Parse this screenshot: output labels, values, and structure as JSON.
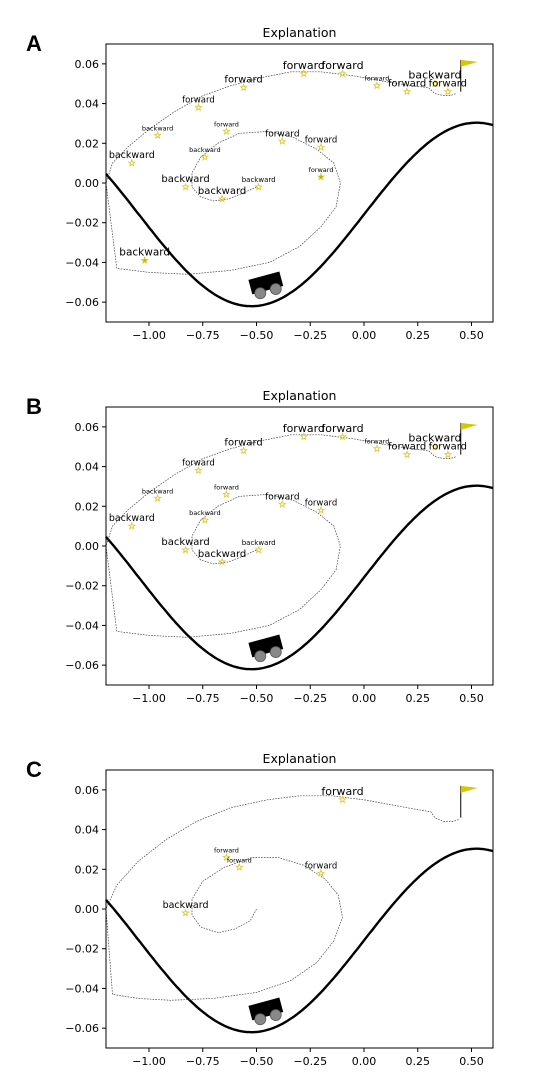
{
  "figure": {
    "panels": [
      {
        "letter": "A",
        "chart_data": {
          "type": "line",
          "title": "Explanation",
          "xlabel": "",
          "ylabel": "",
          "xlim": [
            -1.2,
            0.6
          ],
          "ylim": [
            -0.07,
            0.07
          ],
          "xticks": [
            -1.0,
            -0.75,
            -0.5,
            -0.25,
            0.0,
            0.25,
            0.5
          ],
          "xtick_labels": [
            "−1.00",
            "−0.75",
            "−0.50",
            "−0.25",
            "0.00",
            "0.25",
            "0.50"
          ],
          "yticks": [
            -0.06,
            -0.04,
            -0.02,
            0.0,
            0.02,
            0.04,
            0.06
          ],
          "ytick_labels": [
            "−0.06",
            "−0.04",
            "−0.02",
            "0.00",
            "0.02",
            "0.04",
            "0.06"
          ],
          "grid": false,
          "trajectory": [
            [
              -0.5,
              -0.002
            ],
            [
              -0.56,
              -0.005
            ],
            [
              -0.63,
              -0.008
            ],
            [
              -0.7,
              -0.009
            ],
            [
              -0.76,
              -0.007
            ],
            [
              -0.8,
              -0.002
            ],
            [
              -0.8,
              0.005
            ],
            [
              -0.76,
              0.013
            ],
            [
              -0.68,
              0.02
            ],
            [
              -0.58,
              0.025
            ],
            [
              -0.45,
              0.026
            ],
            [
              -0.33,
              0.023
            ],
            [
              -0.22,
              0.017
            ],
            [
              -0.14,
              0.01
            ],
            [
              -0.11,
              0.0
            ],
            [
              -0.13,
              -0.012
            ],
            [
              -0.2,
              -0.022
            ],
            [
              -0.3,
              -0.032
            ],
            [
              -0.44,
              -0.04
            ],
            [
              -0.62,
              -0.044
            ],
            [
              -0.82,
              -0.046
            ],
            [
              -1.0,
              -0.045
            ],
            [
              -1.15,
              -0.043
            ],
            [
              -1.2,
              0.0
            ],
            [
              -1.17,
              0.01
            ],
            [
              -1.1,
              0.018
            ],
            [
              -1.0,
              0.027
            ],
            [
              -0.88,
              0.036
            ],
            [
              -0.75,
              0.044
            ],
            [
              -0.62,
              0.049
            ],
            [
              -0.48,
              0.053
            ],
            [
              -0.34,
              0.056
            ],
            [
              -0.2,
              0.056
            ],
            [
              -0.05,
              0.054
            ],
            [
              0.1,
              0.051
            ],
            [
              0.22,
              0.049
            ],
            [
              0.3,
              0.048
            ],
            [
              0.33,
              0.045
            ],
            [
              0.37,
              0.044
            ],
            [
              0.4,
              0.044
            ],
            [
              0.43,
              0.045
            ]
          ],
          "markers": [
            {
              "label": "backward",
              "x": -1.02,
              "y": -0.039,
              "size": 10.5
            },
            {
              "label": "backward",
              "x": -1.08,
              "y": 0.01,
              "size": 9.5
            },
            {
              "label": "backward",
              "x": -0.96,
              "y": 0.024,
              "size": 6.5
            },
            {
              "label": "forward",
              "x": -0.77,
              "y": 0.038,
              "size": 8.5
            },
            {
              "label": "forward",
              "x": -0.56,
              "y": 0.048,
              "size": 10
            },
            {
              "label": "forward",
              "x": -0.28,
              "y": 0.055,
              "size": 11
            },
            {
              "label": "forward",
              "x": -0.1,
              "y": 0.055,
              "size": 11
            },
            {
              "label": "forward",
              "x": 0.06,
              "y": 0.049,
              "size": 6.5
            },
            {
              "label": "forward",
              "x": 0.2,
              "y": 0.046,
              "size": 10
            },
            {
              "label": "backward",
              "x": 0.33,
              "y": 0.05,
              "size": 11
            },
            {
              "label": "forward",
              "x": 0.39,
              "y": 0.046,
              "size": 10
            },
            {
              "label": "forward",
              "x": -0.64,
              "y": 0.026,
              "size": 6.5
            },
            {
              "label": "forward",
              "x": -0.38,
              "y": 0.021,
              "size": 9
            },
            {
              "label": "backward",
              "x": -0.74,
              "y": 0.013,
              "size": 6.5
            },
            {
              "label": "forward",
              "x": -0.2,
              "y": 0.018,
              "size": 8.5
            },
            {
              "label": "forward",
              "x": -0.2,
              "y": 0.003,
              "size": 6.5
            },
            {
              "label": "backward",
              "x": -0.49,
              "y": -0.002,
              "size": 7
            },
            {
              "label": "backward",
              "x": -0.83,
              "y": -0.002,
              "size": 10
            },
            {
              "label": "backward",
              "x": -0.66,
              "y": -0.008,
              "size": 10
            }
          ]
        }
      },
      {
        "letter": "B",
        "chart_data": {
          "type": "line",
          "title": "Explanation",
          "xlabel": "",
          "ylabel": "",
          "xlim": [
            -1.2,
            0.6
          ],
          "ylim": [
            -0.07,
            0.07
          ],
          "xticks": [
            -1.0,
            -0.75,
            -0.5,
            -0.25,
            0.0,
            0.25,
            0.5
          ],
          "xtick_labels": [
            "−1.00",
            "−0.75",
            "−0.50",
            "−0.25",
            "0.00",
            "0.25",
            "0.50"
          ],
          "yticks": [
            -0.06,
            -0.04,
            -0.02,
            0.0,
            0.02,
            0.04,
            0.06
          ],
          "ytick_labels": [
            "−0.06",
            "−0.04",
            "−0.02",
            "0.00",
            "0.02",
            "0.04",
            "0.06"
          ],
          "grid": false,
          "trajectory": [
            [
              -0.5,
              -0.002
            ],
            [
              -0.56,
              -0.005
            ],
            [
              -0.63,
              -0.008
            ],
            [
              -0.7,
              -0.009
            ],
            [
              -0.76,
              -0.007
            ],
            [
              -0.8,
              -0.002
            ],
            [
              -0.8,
              0.005
            ],
            [
              -0.76,
              0.013
            ],
            [
              -0.68,
              0.02
            ],
            [
              -0.58,
              0.025
            ],
            [
              -0.45,
              0.026
            ],
            [
              -0.33,
              0.023
            ],
            [
              -0.22,
              0.017
            ],
            [
              -0.14,
              0.01
            ],
            [
              -0.11,
              0.0
            ],
            [
              -0.13,
              -0.012
            ],
            [
              -0.2,
              -0.022
            ],
            [
              -0.3,
              -0.032
            ],
            [
              -0.44,
              -0.04
            ],
            [
              -0.62,
              -0.044
            ],
            [
              -0.82,
              -0.046
            ],
            [
              -1.0,
              -0.045
            ],
            [
              -1.15,
              -0.043
            ],
            [
              -1.2,
              0.0
            ],
            [
              -1.17,
              0.01
            ],
            [
              -1.1,
              0.018
            ],
            [
              -1.0,
              0.027
            ],
            [
              -0.88,
              0.036
            ],
            [
              -0.75,
              0.044
            ],
            [
              -0.62,
              0.049
            ],
            [
              -0.48,
              0.053
            ],
            [
              -0.34,
              0.056
            ],
            [
              -0.2,
              0.056
            ],
            [
              -0.05,
              0.054
            ],
            [
              0.1,
              0.051
            ],
            [
              0.22,
              0.049
            ],
            [
              0.3,
              0.048
            ],
            [
              0.33,
              0.045
            ],
            [
              0.37,
              0.044
            ],
            [
              0.4,
              0.044
            ],
            [
              0.43,
              0.045
            ]
          ],
          "markers": [
            {
              "label": "backward",
              "x": -1.08,
              "y": 0.01,
              "size": 9.5
            },
            {
              "label": "backward",
              "x": -0.96,
              "y": 0.024,
              "size": 6.5
            },
            {
              "label": "forward",
              "x": -0.77,
              "y": 0.038,
              "size": 8.5
            },
            {
              "label": "forward",
              "x": -0.56,
              "y": 0.048,
              "size": 10
            },
            {
              "label": "forward",
              "x": -0.28,
              "y": 0.055,
              "size": 11
            },
            {
              "label": "forward",
              "x": -0.1,
              "y": 0.055,
              "size": 11
            },
            {
              "label": "forward",
              "x": 0.06,
              "y": 0.049,
              "size": 6.5
            },
            {
              "label": "forward",
              "x": 0.2,
              "y": 0.046,
              "size": 10
            },
            {
              "label": "backward",
              "x": 0.33,
              "y": 0.05,
              "size": 11
            },
            {
              "label": "forward",
              "x": 0.39,
              "y": 0.046,
              "size": 10
            },
            {
              "label": "forward",
              "x": -0.64,
              "y": 0.026,
              "size": 6.5
            },
            {
              "label": "forward",
              "x": -0.38,
              "y": 0.021,
              "size": 9
            },
            {
              "label": "backward",
              "x": -0.74,
              "y": 0.013,
              "size": 6.5
            },
            {
              "label": "forward",
              "x": -0.2,
              "y": 0.018,
              "size": 8.5
            },
            {
              "label": "backward",
              "x": -0.49,
              "y": -0.002,
              "size": 7
            },
            {
              "label": "backward",
              "x": -0.83,
              "y": -0.002,
              "size": 10
            },
            {
              "label": "backward",
              "x": -0.66,
              "y": -0.008,
              "size": 10
            }
          ]
        }
      },
      {
        "letter": "C",
        "chart_data": {
          "type": "line",
          "title": "Explanation",
          "xlabel": "",
          "ylabel": "",
          "xlim": [
            -1.2,
            0.6
          ],
          "ylim": [
            -0.07,
            0.07
          ],
          "xticks": [
            -1.0,
            -0.75,
            -0.5,
            -0.25,
            0.0,
            0.25,
            0.5
          ],
          "xtick_labels": [
            "−1.00",
            "−0.75",
            "−0.50",
            "−0.25",
            "0.00",
            "0.25",
            "0.50"
          ],
          "yticks": [
            -0.06,
            -0.04,
            -0.02,
            0.0,
            0.02,
            0.04,
            0.06
          ],
          "ytick_labels": [
            "−0.06",
            "−0.04",
            "−0.02",
            "0.00",
            "0.02",
            "0.04",
            "0.06"
          ],
          "grid": false,
          "trajectory": [
            [
              -0.5,
              0.0
            ],
            [
              -0.53,
              -0.006
            ],
            [
              -0.6,
              -0.01
            ],
            [
              -0.68,
              -0.012
            ],
            [
              -0.76,
              -0.009
            ],
            [
              -0.8,
              -0.003
            ],
            [
              -0.8,
              0.005
            ],
            [
              -0.75,
              0.014
            ],
            [
              -0.65,
              0.021
            ],
            [
              -0.52,
              0.026
            ],
            [
              -0.4,
              0.026
            ],
            [
              -0.28,
              0.022
            ],
            [
              -0.18,
              0.015
            ],
            [
              -0.12,
              0.007
            ],
            [
              -0.1,
              -0.004
            ],
            [
              -0.14,
              -0.016
            ],
            [
              -0.22,
              -0.027
            ],
            [
              -0.34,
              -0.036
            ],
            [
              -0.5,
              -0.042
            ],
            [
              -0.7,
              -0.045
            ],
            [
              -0.9,
              -0.046
            ],
            [
              -1.05,
              -0.045
            ],
            [
              -1.17,
              -0.043
            ],
            [
              -1.2,
              0.0
            ],
            [
              -1.15,
              0.012
            ],
            [
              -1.05,
              0.024
            ],
            [
              -0.92,
              0.035
            ],
            [
              -0.78,
              0.044
            ],
            [
              -0.62,
              0.051
            ],
            [
              -0.45,
              0.055
            ],
            [
              -0.3,
              0.057
            ],
            [
              -0.15,
              0.057
            ],
            [
              0.0,
              0.055
            ],
            [
              0.15,
              0.052
            ],
            [
              0.25,
              0.05
            ],
            [
              0.31,
              0.049
            ],
            [
              0.33,
              0.046
            ],
            [
              0.37,
              0.044
            ],
            [
              0.41,
              0.044
            ],
            [
              0.44,
              0.045
            ]
          ],
          "markers": [
            {
              "label": "forward",
              "x": -0.1,
              "y": 0.055,
              "size": 11
            },
            {
              "label": "forward",
              "x": -0.64,
              "y": 0.026,
              "size": 6.5
            },
            {
              "label": "forward",
              "x": -0.58,
              "y": 0.021,
              "size": 6.5
            },
            {
              "label": "forward",
              "x": -0.2,
              "y": 0.018,
              "size": 8.5
            },
            {
              "label": "backward",
              "x": -0.83,
              "y": -0.002,
              "size": 9.5
            }
          ]
        }
      }
    ],
    "colors": {
      "star": "#d9cc3a",
      "star_strong": "#c9a300",
      "flag": "#d4c800",
      "car": "#000000",
      "wheel": "#888888"
    },
    "car_position_x": -0.45,
    "flag_position_x": 0.45
  }
}
